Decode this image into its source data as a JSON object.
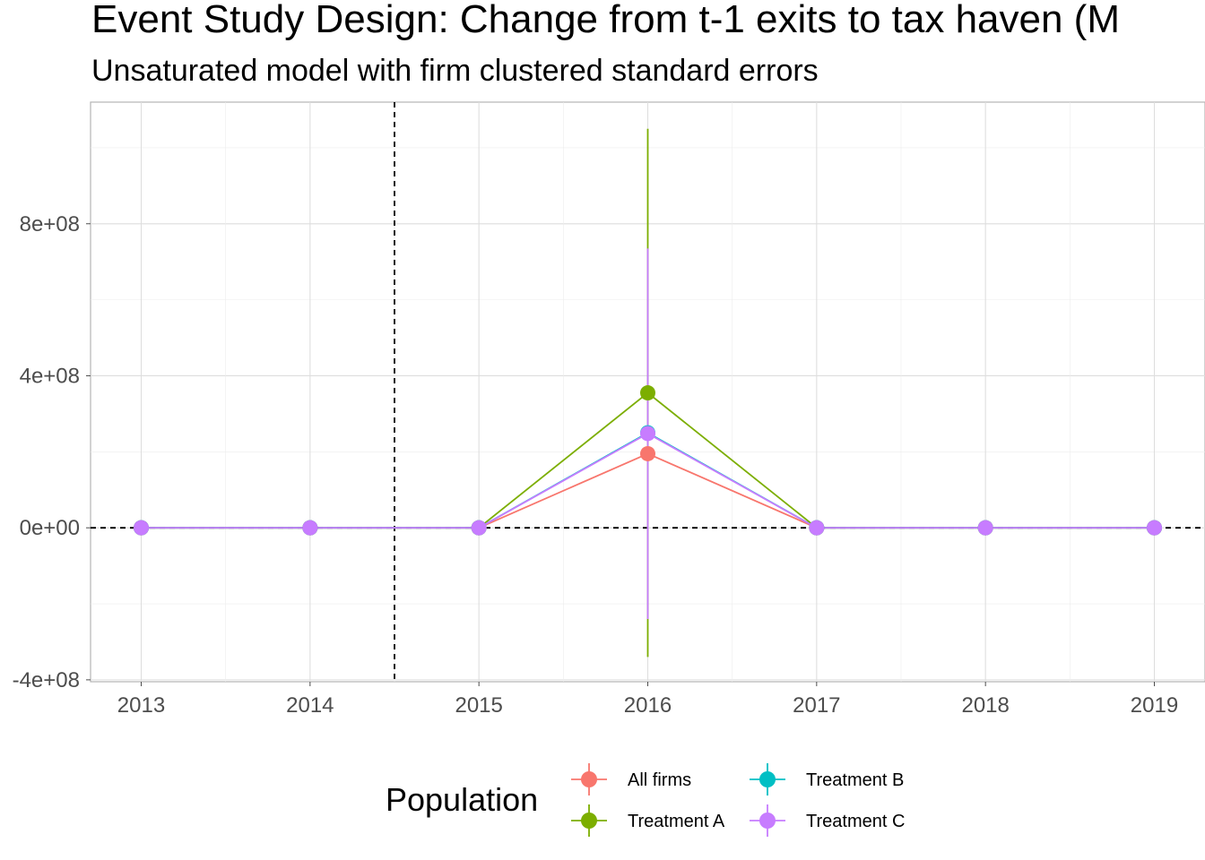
{
  "chart_data": {
    "type": "line",
    "title": "Event Study Design: Change from t-1 exits to tax haven (M",
    "subtitle": "Unsaturated model with firm clustered standard errors",
    "x_ticks": [
      "2013",
      "2014",
      "2015",
      "2016",
      "2017",
      "2018",
      "2019"
    ],
    "y_ticks": [
      "-4e+08",
      "0e+00",
      "4e+08",
      "8e+08"
    ],
    "y_tick_values": [
      -400000000,
      0,
      400000000,
      800000000
    ],
    "xlim": [
      2012.7,
      2019.3
    ],
    "ylim": [
      -405000000,
      1120000000
    ],
    "reference_lines": {
      "vertical_x": 2014.5,
      "horizontal_y": 0
    },
    "grid": true,
    "legend": {
      "title": "Population",
      "placement": "bottom"
    },
    "series": [
      {
        "name": "All firms",
        "color": "#F8766D",
        "x": [
          2013,
          2014,
          2015,
          2016,
          2017,
          2018,
          2019
        ],
        "y": [
          0,
          0,
          0,
          195000000,
          0,
          0,
          0
        ],
        "ci_low": [
          0,
          0,
          0,
          null,
          0,
          0,
          0
        ],
        "ci_high": [
          0,
          0,
          0,
          null,
          0,
          0,
          0
        ]
      },
      {
        "name": "Treatment A",
        "color": "#7CAE00",
        "x": [
          2013,
          2014,
          2015,
          2016,
          2017,
          2018,
          2019
        ],
        "y": [
          0,
          0,
          0,
          355000000,
          0,
          0,
          0
        ],
        "ci_low": [
          0,
          0,
          0,
          -340000000,
          0,
          0,
          0
        ],
        "ci_high": [
          0,
          0,
          0,
          1050000000,
          0,
          0,
          0
        ]
      },
      {
        "name": "Treatment B",
        "color": "#00BFC4",
        "x": [
          2013,
          2014,
          2015,
          2016,
          2017,
          2018,
          2019
        ],
        "y": [
          0,
          0,
          0,
          250000000,
          0,
          0,
          0
        ],
        "ci_low": [
          0,
          0,
          0,
          null,
          0,
          0,
          0
        ],
        "ci_high": [
          0,
          0,
          0,
          null,
          0,
          0,
          0
        ]
      },
      {
        "name": "Treatment C",
        "color": "#C77CFF",
        "x": [
          2013,
          2014,
          2015,
          2016,
          2017,
          2018,
          2019
        ],
        "y": [
          0,
          0,
          0,
          248000000,
          0,
          0,
          0
        ],
        "ci_low": [
          0,
          0,
          0,
          -240000000,
          0,
          0,
          0
        ],
        "ci_high": [
          0,
          0,
          0,
          735000000,
          0,
          0,
          0
        ]
      }
    ]
  }
}
